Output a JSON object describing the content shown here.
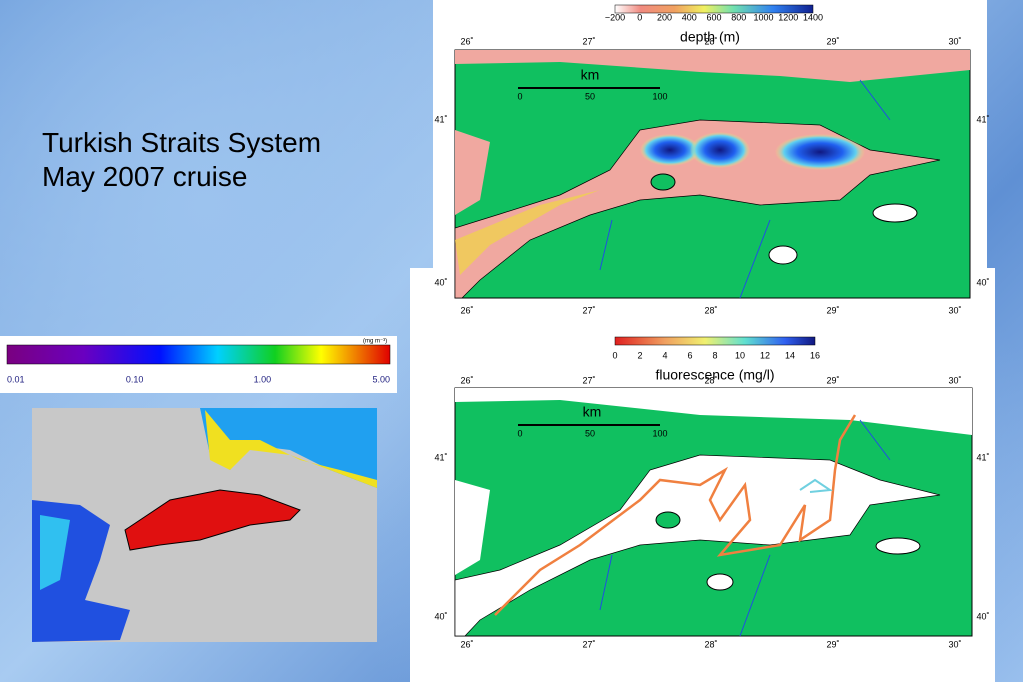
{
  "slide": {
    "title_lines": [
      "Turkish Straits System",
      "May 2007 cruise"
    ]
  },
  "satellite": {
    "colorbar_unit": "(mg m⁻³)",
    "colorbar_labels": [
      "0.01",
      "0.10",
      "1.00",
      "5.00"
    ]
  },
  "depth_map": {
    "colorbar_label": "depth (m)",
    "colorbar_ticks": [
      "−200",
      "0",
      "200",
      "400",
      "600",
      "800",
      "1000",
      "1200",
      "1400"
    ],
    "lon_labels": [
      "26˚",
      "27˚",
      "28˚",
      "29˚",
      "30˚"
    ],
    "lat_labels": [
      "41˚",
      "40˚"
    ],
    "scale_unit": "km",
    "scale_ticks": [
      "0",
      "50",
      "100"
    ]
  },
  "fluorescence_map": {
    "colorbar_label": "fluorescence (mg/l)",
    "colorbar_ticks": [
      "0",
      "2",
      "4",
      "6",
      "8",
      "10",
      "12",
      "14",
      "16"
    ],
    "lon_labels": [
      "26˚",
      "27˚",
      "28˚",
      "29˚",
      "30˚"
    ],
    "lat_labels": [
      "41˚",
      "40˚"
    ],
    "scale_unit": "km",
    "scale_ticks": [
      "0",
      "50",
      "100"
    ]
  }
}
